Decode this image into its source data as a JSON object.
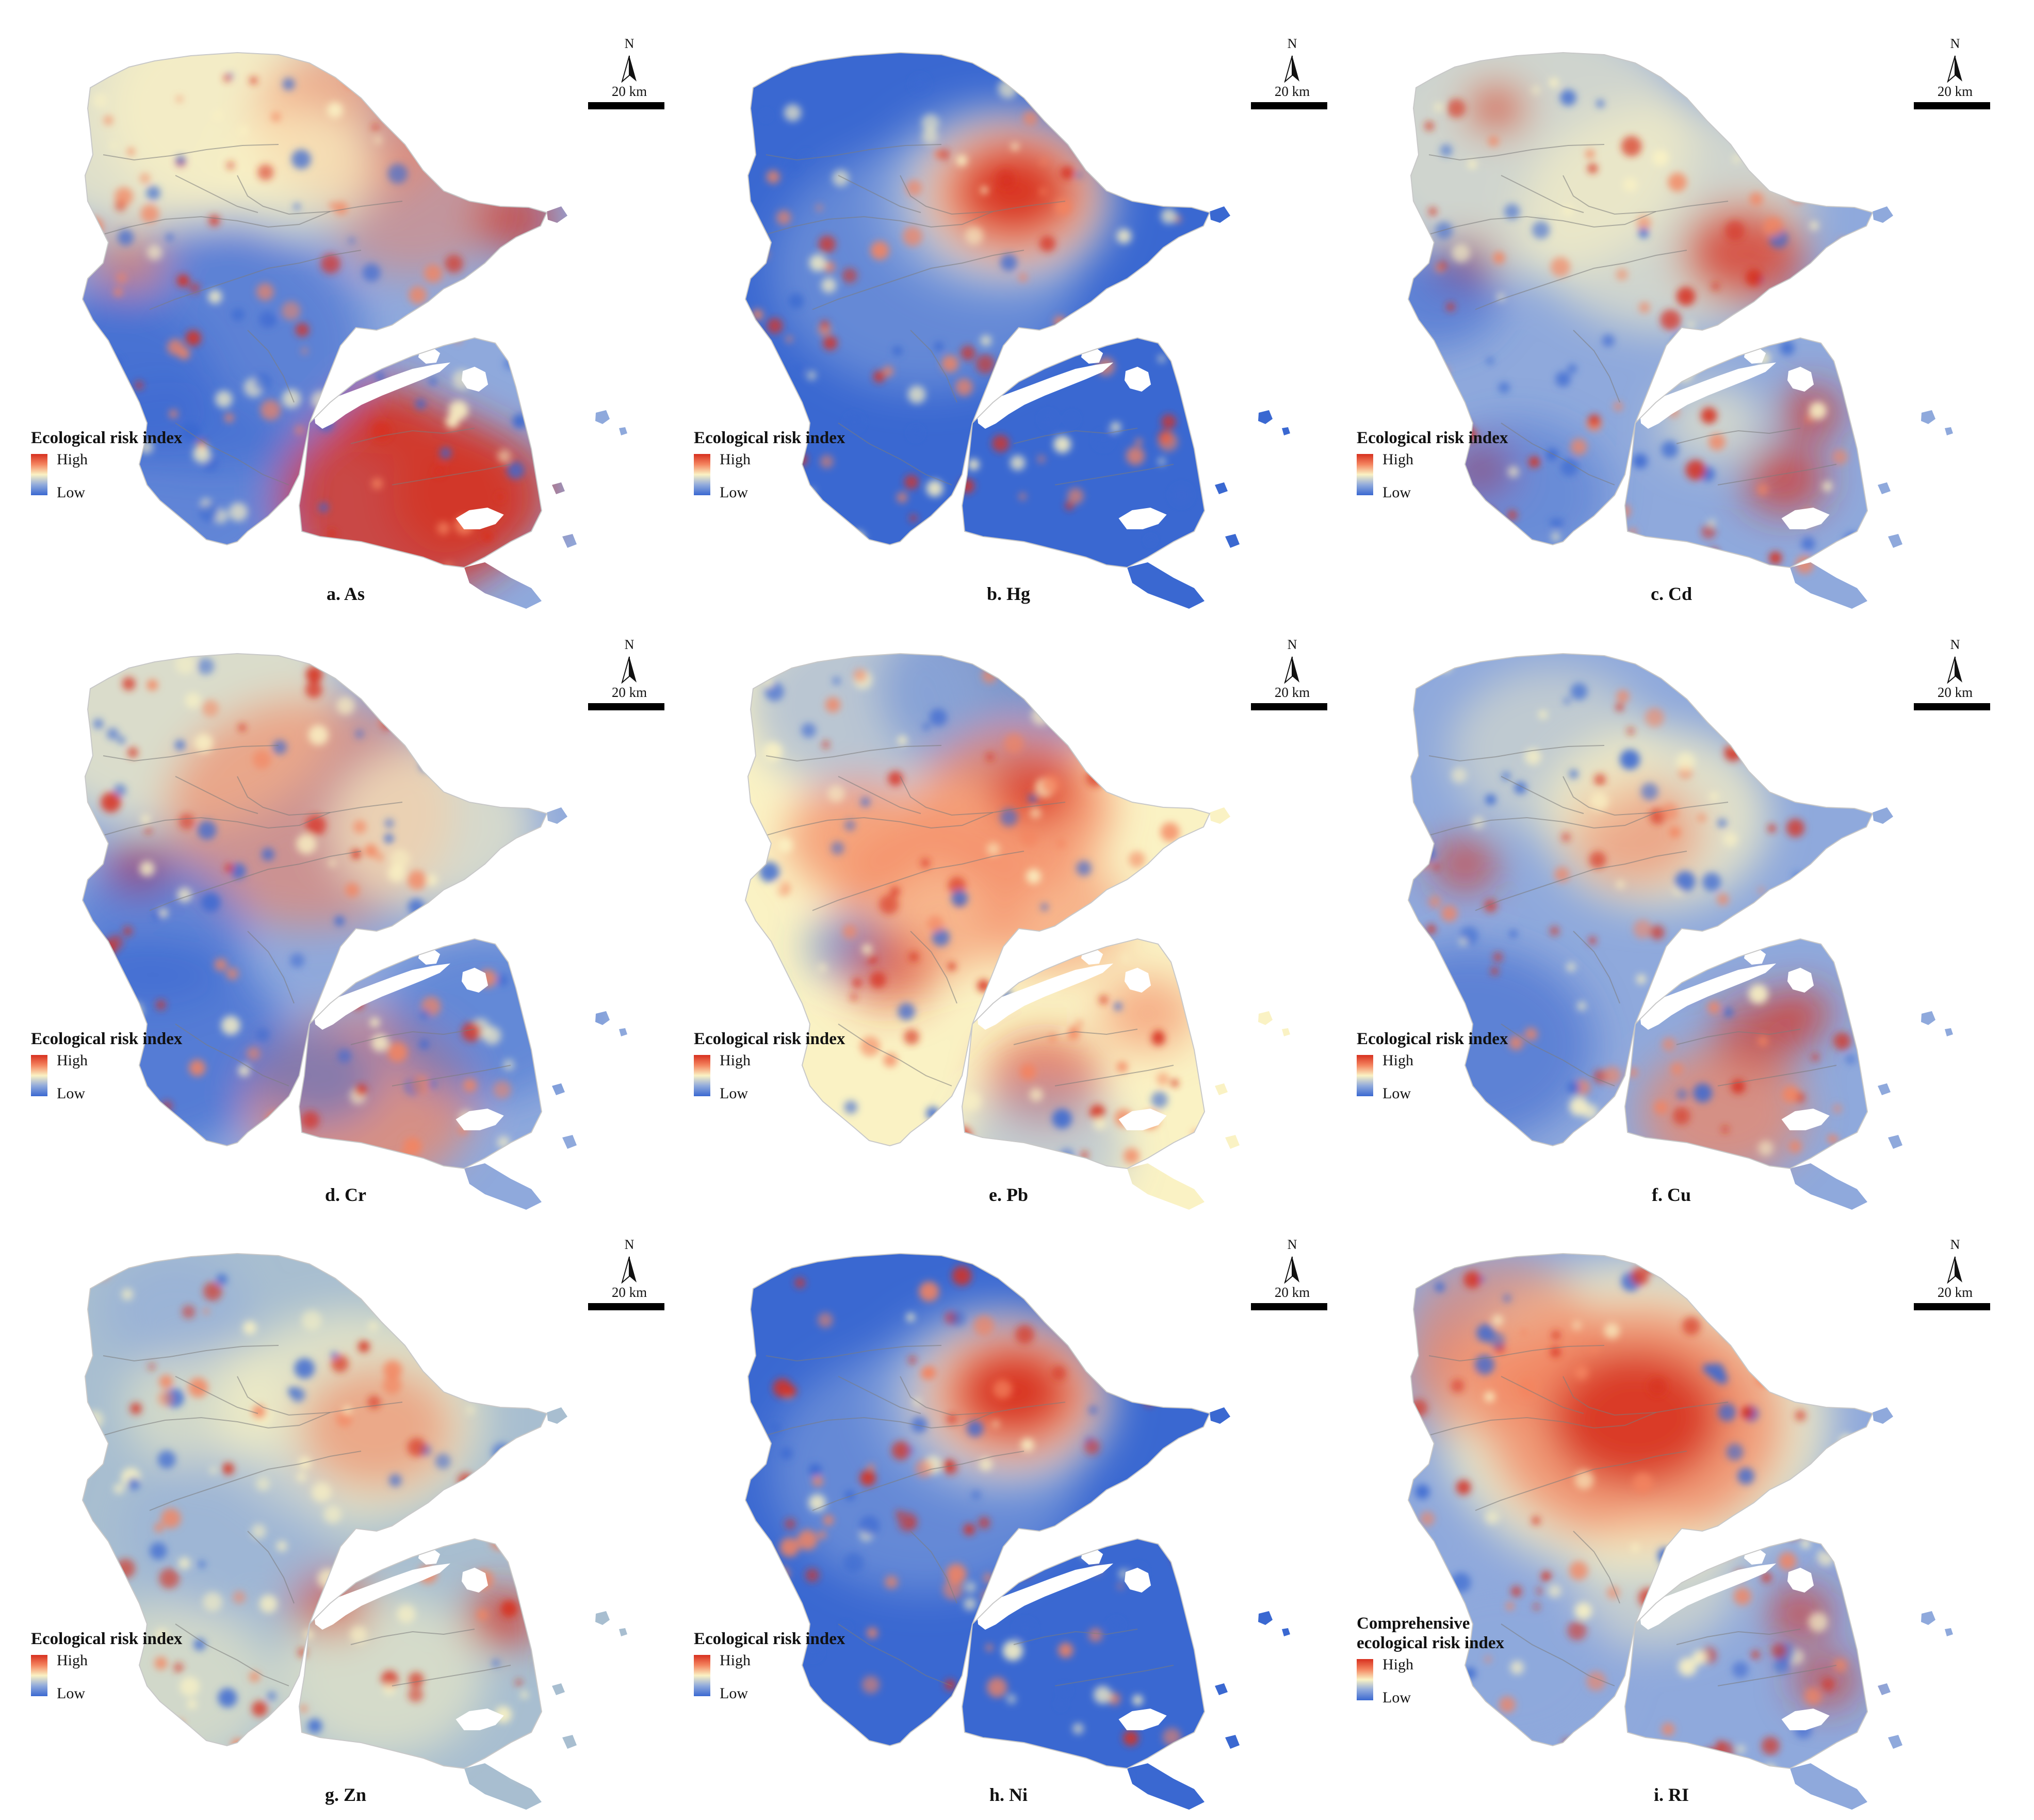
{
  "figure": {
    "colors": {
      "high": "#d7301f",
      "mid_high": "#f4845f",
      "mid": "#faf2c4",
      "mid_low": "#8fa9dc",
      "low": "#3a68d1"
    }
  },
  "panels": [
    {
      "caption": "a. As",
      "legend_title": "Ecological risk index",
      "legend_high": "High",
      "legend_low": "Low",
      "north_label": "N",
      "scale_label": "20 km"
    },
    {
      "caption": "b. Hg",
      "legend_title": "Ecological risk index",
      "legend_high": "High",
      "legend_low": "Low",
      "north_label": "N",
      "scale_label": "20 km"
    },
    {
      "caption": "c. Cd",
      "legend_title": "Ecological risk index",
      "legend_high": "High",
      "legend_low": "Low",
      "north_label": "N",
      "scale_label": "20 km"
    },
    {
      "caption": "d. Cr",
      "legend_title": "Ecological risk index",
      "legend_high": "High",
      "legend_low": "Low",
      "north_label": "N",
      "scale_label": "20 km"
    },
    {
      "caption": "e. Pb",
      "legend_title": "Ecological risk index",
      "legend_high": "High",
      "legend_low": "Low",
      "north_label": "N",
      "scale_label": "20 km"
    },
    {
      "caption": "f. Cu",
      "legend_title": "Ecological risk index",
      "legend_high": "High",
      "legend_low": "Low",
      "north_label": "N",
      "scale_label": "20 km"
    },
    {
      "caption": "g. Zn",
      "legend_title": "Ecological risk index",
      "legend_high": "High",
      "legend_low": "Low",
      "north_label": "N",
      "scale_label": "20 km"
    },
    {
      "caption": "h. Ni",
      "legend_title": "Ecological risk index",
      "legend_high": "High",
      "legend_low": "Low",
      "north_label": "N",
      "scale_label": "20 km"
    },
    {
      "caption": "i. RI",
      "legend_title": "Comprehensive ecological risk index",
      "legend_title_line1": "Comprehensive",
      "legend_title_line2": "ecological risk index",
      "legend_high": "High",
      "legend_low": "Low",
      "north_label": "N",
      "scale_label": "20 km"
    }
  ]
}
